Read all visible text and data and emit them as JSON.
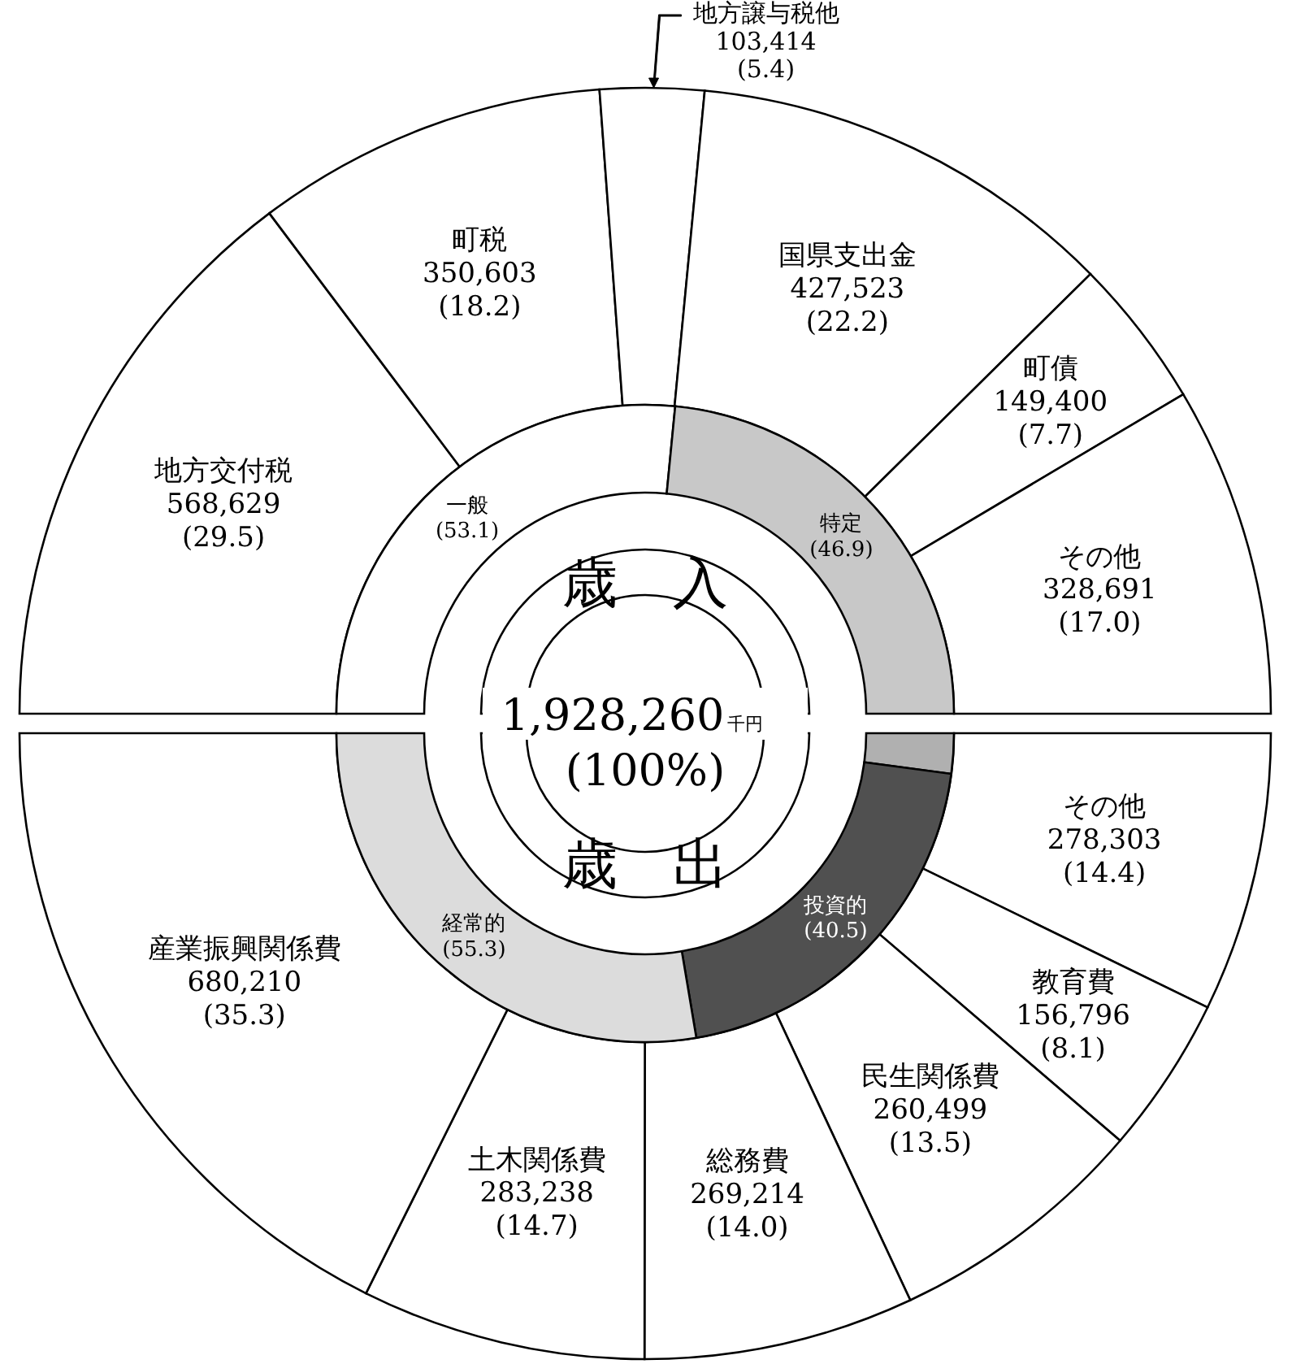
{
  "chart_data": [
    {
      "type": "donut",
      "categories": [
        "地方交付税",
        "町税",
        "地方譲与税他",
        "国県支出金",
        "町債",
        "その他"
      ],
      "values": [
        568629,
        350603,
        103414,
        427523,
        149400,
        328691
      ],
      "value_labels": [
        "568,629\n(29.5)",
        "350,603\n(18.2)",
        "103,414\n(5.4)",
        "427,523\n(22.2)",
        "149,400\n(7.7)",
        "328,691\n(17.0)"
      ],
      "colors": [
        "#ffffff",
        "#ffffff",
        "#ffffff",
        "#ffffff",
        "#ffffff",
        "#ffffff"
      ]
    },
    {
      "type": "donut",
      "title": "歳　入",
      "categories": [
        "一般",
        "特定"
      ],
      "values": [
        53.1,
        46.9
      ],
      "value_labels": [
        "(53.1)",
        "(46.9)"
      ],
      "colors": [
        "#ffffff",
        "#c8c8c8"
      ],
      "annotations": [
        "1,928,260",
        "千円",
        "(100%)"
      ]
    },
    {
      "type": "donut",
      "categories": [
        "その他",
        "教育費",
        "民生関係費",
        "総務費",
        "土木関係費",
        "産業振興関係費"
      ],
      "values": [
        278303,
        156796,
        260499,
        269214,
        283238,
        680210
      ],
      "value_labels": [
        "278,303\n(14.4)",
        "156,796\n(8.1)",
        "260,499\n(13.5)",
        "269,214\n(14.0)",
        "283,238\n(14.7)",
        "680,210\n(35.3)"
      ],
      "colors": [
        "#ffffff",
        "#ffffff",
        "#ffffff",
        "#ffffff",
        "#ffffff",
        "#ffffff"
      ]
    },
    {
      "type": "donut",
      "title": "歳　出",
      "categories": [
        null,
        "投資的",
        "経常的"
      ],
      "values": [
        4.2,
        40.5,
        55.3
      ],
      "value_labels": [
        null,
        "(40.5)",
        "(55.3)"
      ],
      "colors": [
        "#b0b0b0",
        "#505050",
        "#dcdcdc"
      ]
    }
  ]
}
